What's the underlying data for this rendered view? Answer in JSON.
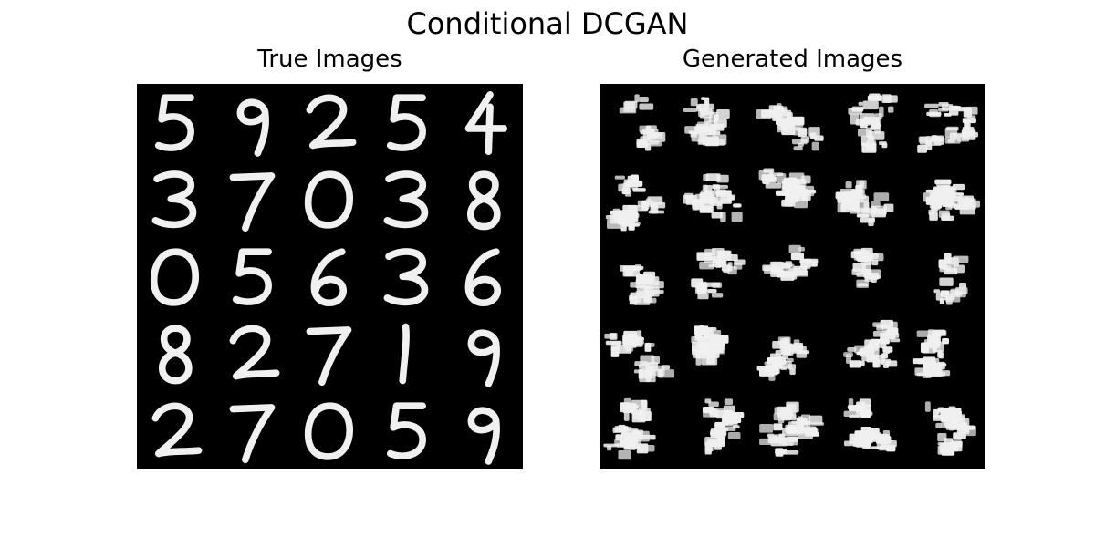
{
  "figure": {
    "suptitle": "Conditional DCGAN",
    "panels": [
      {
        "title": "True Images",
        "digits": [
          [
            "5",
            "9",
            "2",
            "5",
            "4"
          ],
          [
            "3",
            "7",
            "0",
            "3",
            "8"
          ],
          [
            "0",
            "5",
            "6",
            "3",
            "6"
          ],
          [
            "8",
            "2",
            "7",
            "1",
            "9"
          ],
          [
            "2",
            "7",
            "0",
            "5",
            "9"
          ]
        ]
      },
      {
        "title": "Generated Images",
        "digits": [
          [
            "",
            "",
            "",
            "",
            ""
          ],
          [
            "",
            "",
            "",
            "",
            ""
          ],
          [
            "",
            "",
            "",
            "",
            ""
          ],
          [
            "",
            "",
            "",
            "",
            ""
          ],
          [
            "",
            "",
            "",
            "",
            ""
          ]
        ]
      }
    ],
    "colors": {
      "background": "#ffffff",
      "panel": "#000000",
      "stroke": "#f0f0f0"
    }
  }
}
